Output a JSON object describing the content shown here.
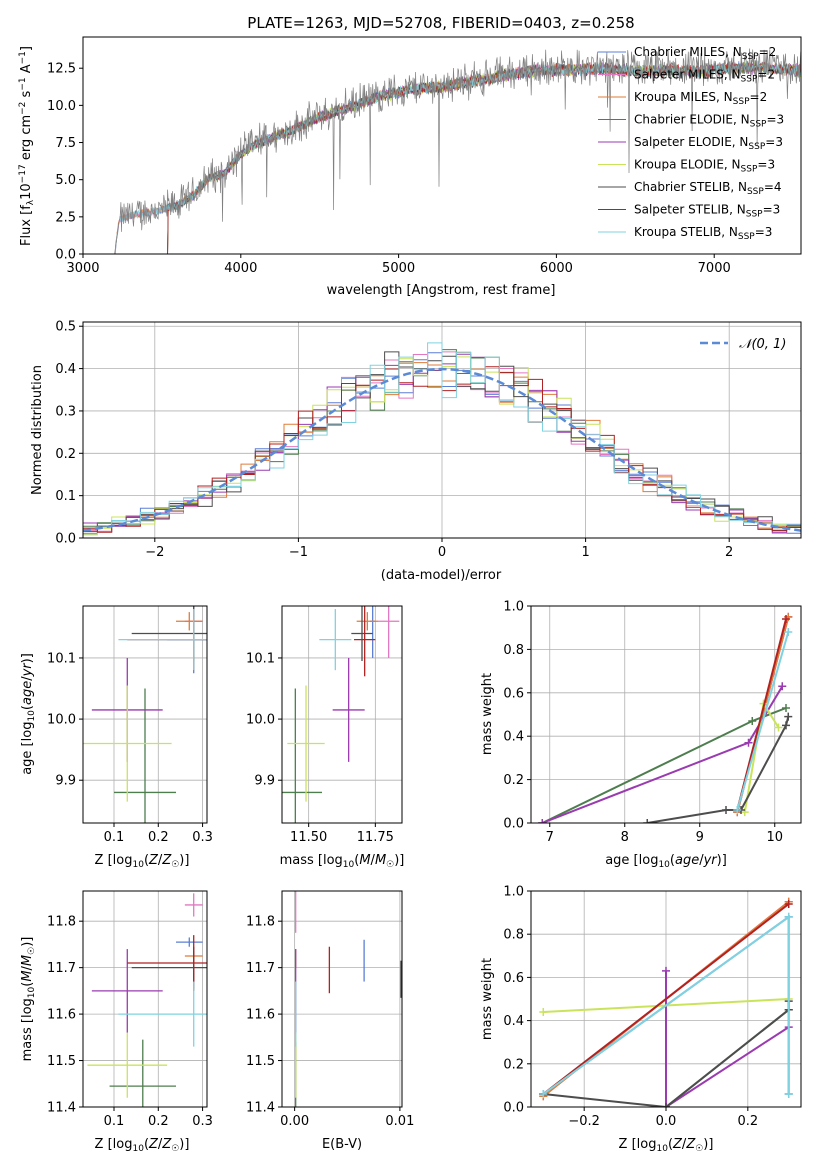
{
  "figure": {
    "title": "PLATE=1263, MJD=52708, FIBERID=0403, z=0.258"
  },
  "models": [
    {
      "label": "Chabrier MILES, N_SSP=2",
      "color": "#5b7fd6"
    },
    {
      "label": "Salpeter MILES, N_SSP=2",
      "color": "#e377c2"
    },
    {
      "label": "Kroupa MILES, N_SSP=2",
      "color": "#e07b39"
    },
    {
      "label": "Chabrier ELODIE, N_SSP=3",
      "color": "#4e7d4e"
    },
    {
      "label": "Salpeter ELODIE, N_SSP=3",
      "color": "#9a3bb0"
    },
    {
      "label": "Kroupa ELODIE, N_SSP=3",
      "color": "#c9e45a"
    },
    {
      "label": "Chabrier STELIB, N_SSP=4",
      "color": "#4d4d4d"
    },
    {
      "label": "Salpeter STELIB, N_SSP=3",
      "color": "#b22222"
    },
    {
      "label": "Kroupa STELIB, N_SSP=3",
      "color": "#7fd3e0"
    }
  ],
  "chart_data": [
    {
      "id": "spectrum",
      "type": "line",
      "xlabel": "wavelength [Angstrom, rest frame]",
      "ylabel": "Flux [f_λ 10^-17 erg cm^-2 s^-1 A^-1]",
      "xlim": [
        3000,
        7550
      ],
      "ylim": [
        0,
        14.6
      ],
      "xticks": [
        3000,
        4000,
        5000,
        6000,
        7000
      ],
      "yticks": [
        0.0,
        2.5,
        5.0,
        7.5,
        10.0,
        12.5
      ],
      "legend": "right",
      "observed_color": "#808080",
      "continuum": {
        "x": [
          3200,
          3230,
          3300,
          3400,
          3500,
          3600,
          3700,
          3800,
          3900,
          3950,
          4000,
          4100,
          4300,
          4500,
          4700,
          4900,
          5100,
          5300,
          5500,
          5700,
          5900,
          6100,
          6300,
          6500,
          6700,
          6900,
          7100,
          7300,
          7500
        ],
        "y": [
          0.0,
          2.3,
          2.6,
          2.8,
          3.0,
          3.3,
          4.0,
          5.2,
          5.5,
          6.2,
          6.8,
          7.5,
          8.3,
          9.3,
          10.0,
          10.8,
          11.2,
          11.4,
          11.8,
          12.2,
          12.5,
          12.5,
          12.6,
          12.4,
          12.5,
          12.4,
          12.6,
          12.7,
          12.5
        ]
      },
      "noise_amplitude": 0.9,
      "model_start": [
        3200,
        3200,
        3200,
        3530,
        3530,
        3530,
        3530,
        3530,
        3200
      ]
    },
    {
      "id": "residuals",
      "type": "histogram",
      "xlabel": "(data-model)/error",
      "ylabel": "Normed distribution",
      "xlim": [
        -2.5,
        2.5
      ],
      "ylim": [
        0,
        0.51
      ],
      "xticks": [
        -2,
        -1,
        0,
        1,
        2
      ],
      "yticks": [
        0.0,
        0.1,
        0.2,
        0.3,
        0.4,
        0.5
      ],
      "grid": true,
      "bin_width": 0.1,
      "reference_curve": {
        "label": "𝒩(0, 1)",
        "mean": 0,
        "sigma": 1,
        "color": "#5b8bd6"
      },
      "legend": "top-right"
    },
    {
      "id": "age-vs-Z",
      "type": "errorbar",
      "xlabel": "Z [log10(Z/Z☉)]",
      "ylabel": "age [log10(age/yr)]",
      "xlim": [
        0.03,
        0.31
      ],
      "ylim": [
        9.83,
        10.185
      ],
      "xticks": [
        0.1,
        0.2,
        0.3
      ],
      "yticks": [
        9.9,
        10.0,
        10.1
      ],
      "grid": true,
      "points": [
        {
          "m": 0,
          "x": 0.28,
          "y": 10.13,
          "xe": 0.06,
          "ye": 0.055
        },
        {
          "m": 1,
          "x": 0.28,
          "y": 10.16,
          "xe": 0.02,
          "ye": 0.015
        },
        {
          "m": 2,
          "x": 0.27,
          "y": 10.16,
          "xe": 0.03,
          "ye": 0.015
        },
        {
          "m": 3,
          "x": 0.17,
          "y": 9.88,
          "xe": 0.07,
          "ye": 0.17
        },
        {
          "m": 4,
          "x": 0.13,
          "y": 10.015,
          "xe": 0.08,
          "ye": 0.085
        },
        {
          "m": 5,
          "x": 0.13,
          "y": 9.96,
          "xe": 0.1,
          "ye": 0.095
        },
        {
          "m": 6,
          "x": 0.28,
          "y": 10.14,
          "xe": 0.14,
          "ye": 0.045
        },
        {
          "m": 7,
          "x": 0.28,
          "y": 10.13,
          "xe": 0.15,
          "ye": 0.05
        },
        {
          "m": 8,
          "x": 0.28,
          "y": 10.13,
          "xe": 0.17,
          "ye": 0.05
        }
      ]
    },
    {
      "id": "age-vs-mass",
      "type": "errorbar",
      "xlabel": "mass [log10(M/M☉)]",
      "ylabel": "",
      "xlim": [
        11.4,
        11.85
      ],
      "ylim": [
        9.83,
        10.185
      ],
      "xticks": [
        11.5,
        11.75
      ],
      "yticks": [
        9.9,
        10.0,
        10.1
      ],
      "grid": true,
      "points": [
        {
          "m": 0,
          "x": 11.74,
          "y": 10.16,
          "xe": 0.01,
          "ye": 0.06
        },
        {
          "m": 1,
          "x": 11.8,
          "y": 10.16,
          "xe": 0.04,
          "ye": 0.06
        },
        {
          "m": 2,
          "x": 11.72,
          "y": 10.16,
          "xe": 0.04,
          "ye": 0.015
        },
        {
          "m": 3,
          "x": 11.45,
          "y": 9.88,
          "xe": 0.1,
          "ye": 0.17
        },
        {
          "m": 4,
          "x": 11.65,
          "y": 10.015,
          "xe": 0.06,
          "ye": 0.085
        },
        {
          "m": 5,
          "x": 11.49,
          "y": 9.96,
          "xe": 0.07,
          "ye": 0.095
        },
        {
          "m": 6,
          "x": 11.7,
          "y": 10.14,
          "xe": 0.04,
          "ye": 0.045
        },
        {
          "m": 7,
          "x": 11.71,
          "y": 10.13,
          "xe": 0.04,
          "ye": 0.06
        },
        {
          "m": 8,
          "x": 11.6,
          "y": 10.13,
          "xe": 0.06,
          "ye": 0.05
        }
      ]
    },
    {
      "id": "weight-vs-age",
      "type": "line",
      "xlabel": "age [log10(age/yr)]",
      "ylabel": "mass weight",
      "xlim": [
        6.75,
        10.35
      ],
      "ylim": [
        0,
        1.0
      ],
      "xticks": [
        7,
        8,
        9,
        10
      ],
      "yticks": [
        0.0,
        0.2,
        0.4,
        0.6,
        0.8,
        1.0
      ],
      "grid": true,
      "series": [
        {
          "m": 0,
          "x": [
            9.5,
            10.18
          ],
          "y": [
            0.05,
            0.95
          ]
        },
        {
          "m": 1,
          "x": [
            9.5,
            10.18
          ],
          "y": [
            0.05,
            0.95
          ]
        },
        {
          "m": 2,
          "x": [
            9.5,
            10.18
          ],
          "y": [
            0.05,
            0.95
          ]
        },
        {
          "m": 3,
          "x": [
            6.9,
            9.7,
            10.15
          ],
          "y": [
            0.0,
            0.47,
            0.53
          ]
        },
        {
          "m": 4,
          "x": [
            6.9,
            9.65,
            10.1
          ],
          "y": [
            0.0,
            0.37,
            0.63
          ]
        },
        {
          "m": 5,
          "x": [
            9.6,
            9.85,
            10.05
          ],
          "y": [
            0.05,
            0.55,
            0.44
          ]
        },
        {
          "m": 6,
          "x": [
            8.3,
            9.35,
            9.55,
            10.15,
            10.18
          ],
          "y": [
            0.0,
            0.06,
            0.06,
            0.45,
            0.49
          ]
        },
        {
          "m": 7,
          "x": [
            9.5,
            10.15
          ],
          "y": [
            0.06,
            0.94
          ]
        },
        {
          "m": 8,
          "x": [
            9.5,
            10.18
          ],
          "y": [
            0.06,
            0.88
          ]
        }
      ]
    },
    {
      "id": "mass-vs-Z",
      "type": "errorbar",
      "xlabel": "Z [log10(Z/Z☉)]",
      "ylabel": "mass [log10(M/M☉)]",
      "xlim": [
        0.03,
        0.31
      ],
      "ylim": [
        11.4,
        11.865
      ],
      "xticks": [
        0.1,
        0.2,
        0.3
      ],
      "yticks": [
        11.4,
        11.5,
        11.6,
        11.7,
        11.8
      ],
      "grid": true,
      "points": [
        {
          "m": 0,
          "x": 0.27,
          "y": 11.755,
          "xe": 0.03,
          "ye": 0.01
        },
        {
          "m": 1,
          "x": 0.28,
          "y": 11.835,
          "xe": 0.02,
          "ye": 0.025
        },
        {
          "m": 2,
          "x": 0.28,
          "y": 11.725,
          "xe": 0.02,
          "ye": 0.01
        },
        {
          "m": 3,
          "x": 0.165,
          "y": 11.445,
          "xe": 0.075,
          "ye": 0.1
        },
        {
          "m": 4,
          "x": 0.13,
          "y": 11.65,
          "xe": 0.08,
          "ye": 0.09
        },
        {
          "m": 5,
          "x": 0.13,
          "y": 11.49,
          "xe": 0.09,
          "ye": 0.07
        },
        {
          "m": 6,
          "x": 0.28,
          "y": 11.7,
          "xe": 0.14,
          "ye": 0.045
        },
        {
          "m": 7,
          "x": 0.28,
          "y": 11.71,
          "xe": 0.15,
          "ye": 0.06
        },
        {
          "m": 8,
          "x": 0.28,
          "y": 11.6,
          "xe": 0.17,
          "ye": 0.07
        }
      ]
    },
    {
      "id": "mass-vs-EBV",
      "type": "errorbar",
      "xlabel": "E(B-V)",
      "ylabel": "",
      "xlim": [
        -0.0012,
        0.0102
      ],
      "ylim": [
        11.4,
        11.865
      ],
      "xticks": [
        0.0,
        0.01
      ],
      "xticklabels": [
        "0.00",
        "0.01"
      ],
      "yticks": [
        11.4,
        11.5,
        11.6,
        11.7,
        11.8
      ],
      "grid": true,
      "points": [
        {
          "m": 0,
          "x": 0.0066,
          "y": 11.715,
          "xe": 0,
          "ye": 0.045
        },
        {
          "m": 1,
          "x": 0.0001,
          "y": 11.82,
          "xe": 0,
          "ye": 0.045
        },
        {
          "m": 2,
          "x": 0.0001,
          "y": 11.72,
          "xe": 0,
          "ye": 0.02
        },
        {
          "m": 3,
          "x": 0.0001,
          "y": 11.45,
          "xe": 0,
          "ye": 0.09
        },
        {
          "m": 4,
          "x": 0.0001,
          "y": 11.65,
          "xe": 0,
          "ye": 0.09
        },
        {
          "m": 5,
          "x": 0.0001,
          "y": 11.49,
          "xe": 0,
          "ye": 0.07
        },
        {
          "m": 6,
          "x": 0.0101,
          "y": 11.675,
          "xe": 0,
          "ye": 0.04
        },
        {
          "m": 7,
          "x": 0.0033,
          "y": 11.695,
          "xe": 0,
          "ye": 0.05
        },
        {
          "m": 8,
          "x": 0.0001,
          "y": 11.6,
          "xe": 0,
          "ye": 0.07
        }
      ]
    },
    {
      "id": "weight-vs-Z",
      "type": "line",
      "xlabel": "Z [log10(Z/Z☉)]",
      "ylabel": "mass weight",
      "xlim": [
        -0.33,
        0.33
      ],
      "ylim": [
        0,
        1.0
      ],
      "xticks": [
        -0.2,
        0.0,
        0.2
      ],
      "yticks": [
        0.0,
        0.2,
        0.4,
        0.6,
        0.8,
        1.0
      ],
      "grid": true,
      "series": [
        {
          "m": 0,
          "x": [
            -0.3,
            0.3,
            0.3
          ],
          "y": [
            0.06,
            0.88,
            0.06
          ]
        },
        {
          "m": 1,
          "x": [
            -0.3,
            0.3
          ],
          "y": [
            0.05,
            0.95
          ]
        },
        {
          "m": 2,
          "x": [
            -0.3,
            0.3
          ],
          "y": [
            0.05,
            0.95
          ]
        },
        {
          "m": 3,
          "x": [
            0.0,
            0.3
          ],
          "y": [
            0.0,
            0.45
          ]
        },
        {
          "m": 4,
          "x": [
            0.0,
            0.0,
            0.3
          ],
          "y": [
            0.63,
            0.0,
            0.37
          ]
        },
        {
          "m": 5,
          "x": [
            -0.3,
            0.3
          ],
          "y": [
            0.44,
            0.5
          ]
        },
        {
          "m": 6,
          "x": [
            -0.3,
            0.0,
            0.3,
            0.3
          ],
          "y": [
            0.06,
            0.0,
            0.45,
            0.49
          ]
        },
        {
          "m": 7,
          "x": [
            -0.3,
            0.3
          ],
          "y": [
            0.06,
            0.94
          ]
        },
        {
          "m": 8,
          "x": [
            -0.3,
            0.3,
            0.3
          ],
          "y": [
            0.06,
            0.88,
            0.06
          ]
        }
      ]
    }
  ]
}
